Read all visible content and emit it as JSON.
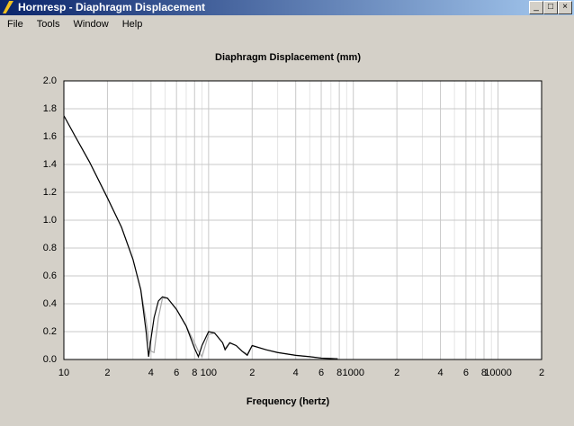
{
  "window": {
    "title": "Hornresp - Diaphragm Displacement",
    "menu": [
      "File",
      "Tools",
      "Window",
      "Help"
    ]
  },
  "chart_data": {
    "type": "line",
    "title": "Diaphragm Displacement (mm)",
    "x_label": "Frequency (hertz)",
    "x_scale": "log",
    "xlim": [
      10,
      20000
    ],
    "ylim": [
      0,
      2
    ],
    "grid": true,
    "xticks": [
      10,
      {
        "value": 20,
        "label": "2"
      },
      {
        "value": 40,
        "label": "4"
      },
      {
        "value": 60,
        "label": "6"
      },
      {
        "value": 80,
        "label": "8"
      },
      100,
      {
        "value": 200,
        "label": "2"
      },
      {
        "value": 400,
        "label": "4"
      },
      {
        "value": 600,
        "label": "6"
      },
      {
        "value": 800,
        "label": "8"
      },
      1000,
      {
        "value": 2000,
        "label": "2"
      },
      {
        "value": 4000,
        "label": "4"
      },
      {
        "value": 6000,
        "label": "6"
      },
      {
        "value": 8000,
        "label": "8"
      },
      10000,
      {
        "value": 20000,
        "label": "2"
      }
    ],
    "minor_xticks": [
      30,
      50,
      70,
      90,
      300,
      500,
      700,
      900,
      3000,
      5000,
      7000,
      9000
    ],
    "yticks": [
      {
        "value": 0,
        "label": "0.0"
      },
      0.2,
      0.4,
      0.6,
      0.8,
      {
        "value": 1,
        "label": "1.0"
      },
      1.2,
      1.4,
      1.6,
      1.8,
      {
        "value": 2,
        "label": "2.0"
      }
    ],
    "x": [
      10,
      12,
      15,
      20,
      25,
      30,
      34,
      37,
      38.5,
      40,
      42,
      45,
      48,
      52,
      60,
      70,
      80,
      85,
      90,
      100,
      110,
      125,
      130,
      140,
      155,
      170,
      185,
      200,
      250,
      300,
      400,
      500,
      600,
      780
    ],
    "series": [
      {
        "color": "#a8a8a8",
        "values": [
          1.75,
          1.6,
          1.42,
          1.16,
          0.95,
          0.72,
          0.5,
          0.28,
          0.15,
          0.06,
          0.05,
          0.3,
          0.44,
          0.44,
          0.36,
          0.24,
          0.12,
          0.06,
          0.02,
          0.18,
          0.19,
          0.12,
          0.08,
          0.12,
          0.1,
          0.06,
          0.04,
          0.1,
          0.07,
          0.05,
          0.03,
          0.02,
          0.01,
          0.005
        ]
      },
      {
        "color": "#000000",
        "values": [
          1.75,
          1.6,
          1.42,
          1.16,
          0.95,
          0.72,
          0.5,
          0.2,
          0.02,
          0.15,
          0.3,
          0.42,
          0.45,
          0.44,
          0.36,
          0.24,
          0.08,
          0.02,
          0.1,
          0.2,
          0.19,
          0.12,
          0.07,
          0.12,
          0.1,
          0.06,
          0.03,
          0.1,
          0.07,
          0.05,
          0.03,
          0.02,
          0.01,
          0.005
        ]
      }
    ]
  }
}
